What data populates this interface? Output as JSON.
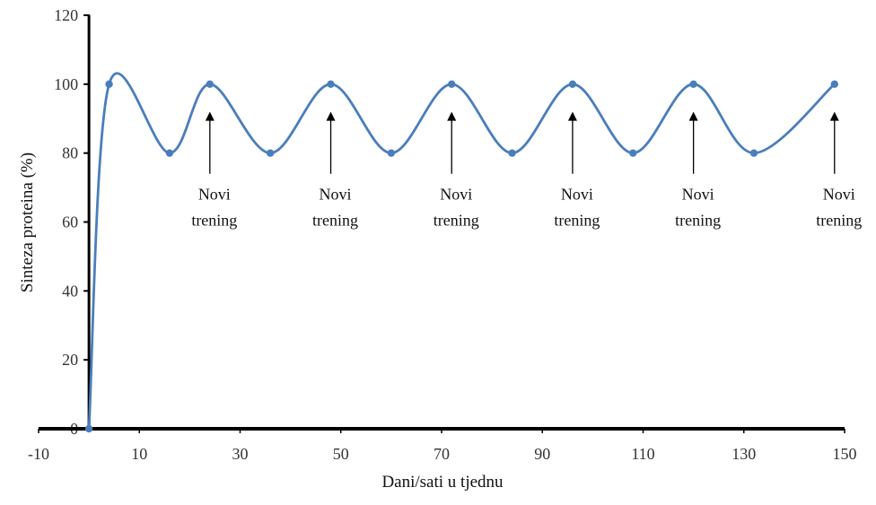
{
  "chart_data": {
    "type": "line",
    "title": "",
    "xlabel": "Dani/sati u tjednu",
    "ylabel": "Sinteza proteina (%)",
    "xlim": [
      -10,
      150
    ],
    "ylim": [
      0,
      120
    ],
    "xticks": [
      -10,
      10,
      30,
      50,
      70,
      90,
      110,
      130,
      150
    ],
    "yticks": [
      0,
      20,
      40,
      60,
      80,
      100,
      120
    ],
    "grid": false,
    "legend": "none",
    "series": [
      {
        "color": "#4a7ebb",
        "x": [
          0,
          4,
          16,
          24,
          36,
          48,
          60,
          72,
          84,
          96,
          108,
          120,
          132,
          148
        ],
        "y": [
          0,
          100,
          80,
          100,
          80,
          100,
          80,
          100,
          80,
          100,
          80,
          100,
          80,
          100
        ]
      }
    ],
    "annotations": [
      {
        "x": 24,
        "line1": "Novi",
        "line2": "trening"
      },
      {
        "x": 48,
        "line1": "Novi",
        "line2": "trening"
      },
      {
        "x": 72,
        "line1": "Novi",
        "line2": "trening"
      },
      {
        "x": 96,
        "line1": "Novi",
        "line2": "trening"
      },
      {
        "x": 120,
        "line1": "Novi",
        "line2": "trening"
      },
      {
        "x": 148,
        "line1": "Novi",
        "line2": "trening"
      }
    ]
  }
}
